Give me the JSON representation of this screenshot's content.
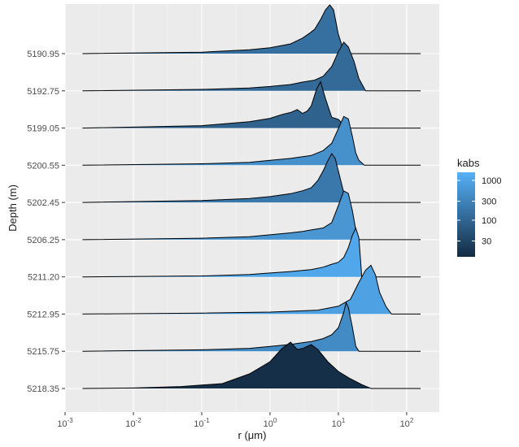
{
  "chart_data": {
    "type": "ridgeline",
    "xlabel": "r (μm)",
    "ylabel": "Depth (m)",
    "x_scale": "log10",
    "xlim": [
      0.001,
      300
    ],
    "x_tick_exponents": [
      -3,
      -2,
      -1,
      0,
      1,
      2
    ],
    "x_tick_base": "10",
    "legend": {
      "title": "kabs",
      "position": "right",
      "scale": "log10",
      "range": [
        12,
        1600
      ],
      "ticks": [
        "1000",
        "300",
        "100",
        "30"
      ],
      "tick_values": [
        1000,
        300,
        100,
        30
      ],
      "colors": [
        "#132B43",
        "#56B1F7"
      ]
    },
    "series": [
      {
        "depth": "5190.95",
        "kabs": 150,
        "x": [
          0.0018,
          0.1,
          0.5,
          1,
          2,
          3,
          3.8,
          4.5,
          5.5,
          6.5,
          7.5,
          8.5,
          10,
          12,
          14,
          160
        ],
        "y": [
          0,
          0.03,
          0.08,
          0.12,
          0.2,
          0.32,
          0.42,
          0.5,
          0.7,
          0.9,
          1.0,
          0.9,
          0.4,
          0.05,
          0,
          0
        ]
      },
      {
        "depth": "5192.75",
        "kabs": 120,
        "x": [
          0.0018,
          0.1,
          0.5,
          1,
          2,
          3,
          4.5,
          6,
          8,
          10,
          12,
          14,
          17,
          20,
          25,
          160
        ],
        "y": [
          0,
          0.03,
          0.06,
          0.09,
          0.13,
          0.18,
          0.22,
          0.3,
          0.5,
          0.8,
          1.0,
          0.9,
          0.6,
          0.25,
          0,
          0
        ]
      },
      {
        "depth": "5199.05",
        "kabs": 90,
        "x": [
          0.0018,
          0.1,
          0.5,
          1,
          1.5,
          2,
          2.5,
          3,
          3.5,
          4,
          4.8,
          5.5,
          6.5,
          8,
          10,
          13,
          160
        ],
        "y": [
          0,
          0.05,
          0.13,
          0.2,
          0.28,
          0.32,
          0.38,
          0.3,
          0.35,
          0.45,
          0.8,
          0.95,
          0.6,
          0.22,
          0.18,
          0,
          0
        ]
      },
      {
        "depth": "5200.55",
        "kabs": 500,
        "x": [
          0.0018,
          0.1,
          0.5,
          1,
          2,
          4,
          6,
          8,
          10,
          12,
          14,
          16,
          18,
          20,
          24,
          160
        ],
        "y": [
          0,
          0.03,
          0.06,
          0.1,
          0.14,
          0.2,
          0.3,
          0.45,
          0.75,
          1.0,
          0.95,
          0.6,
          0.25,
          0.1,
          0,
          0
        ]
      },
      {
        "depth": "5202.45",
        "kabs": 200,
        "x": [
          0.0018,
          0.1,
          0.5,
          1,
          2,
          3,
          4,
          5,
          6,
          7,
          8,
          9,
          10,
          12,
          14,
          160
        ],
        "y": [
          0,
          0.04,
          0.08,
          0.12,
          0.18,
          0.24,
          0.3,
          0.45,
          0.65,
          0.85,
          1.0,
          0.9,
          0.65,
          0.2,
          0,
          0
        ]
      },
      {
        "depth": "5206.25",
        "kabs": 600,
        "x": [
          0.0018,
          0.1,
          0.5,
          1,
          2,
          3,
          4,
          6,
          8,
          10,
          12,
          14,
          16,
          18,
          20,
          160
        ],
        "y": [
          0,
          0.03,
          0.06,
          0.1,
          0.14,
          0.17,
          0.2,
          0.24,
          0.35,
          0.7,
          1.0,
          0.95,
          0.6,
          0.2,
          0,
          0
        ]
      },
      {
        "depth": "5211.20",
        "kabs": 1100,
        "x": [
          0.0018,
          0.1,
          0.5,
          1,
          2,
          4,
          6,
          8,
          10,
          12,
          14,
          16,
          18,
          20,
          22,
          160
        ],
        "y": [
          0,
          0.02,
          0.05,
          0.08,
          0.11,
          0.15,
          0.2,
          0.26,
          0.3,
          0.4,
          0.6,
          0.85,
          1.0,
          0.8,
          0,
          0
        ]
      },
      {
        "depth": "5212.95",
        "kabs": 900,
        "x": [
          0.0018,
          0.1,
          1,
          5,
          10,
          15,
          20,
          25,
          30,
          35,
          40,
          50,
          60,
          160
        ],
        "y": [
          0,
          0.02,
          0.04,
          0.08,
          0.16,
          0.3,
          0.65,
          0.9,
          1.0,
          0.8,
          0.45,
          0.15,
          0,
          0
        ]
      },
      {
        "depth": "5215.75",
        "kabs": 400,
        "x": [
          0.0018,
          0.1,
          0.5,
          1,
          2,
          4,
          6,
          8,
          10,
          12,
          13,
          14,
          16,
          18,
          20,
          160
        ],
        "y": [
          0,
          0.03,
          0.06,
          0.1,
          0.14,
          0.2,
          0.26,
          0.34,
          0.48,
          0.8,
          1.0,
          0.9,
          0.5,
          0.1,
          0,
          0
        ]
      },
      {
        "depth": "5218.35",
        "kabs": 14,
        "x": [
          0.0018,
          0.01,
          0.05,
          0.2,
          0.5,
          1,
          1.5,
          2,
          2.5,
          3,
          4,
          5,
          7,
          10,
          15,
          22,
          30,
          160
        ],
        "y": [
          0,
          0.01,
          0.04,
          0.1,
          0.3,
          0.55,
          0.82,
          0.95,
          0.8,
          0.82,
          0.9,
          0.8,
          0.55,
          0.35,
          0.2,
          0.08,
          0,
          0
        ]
      }
    ]
  }
}
